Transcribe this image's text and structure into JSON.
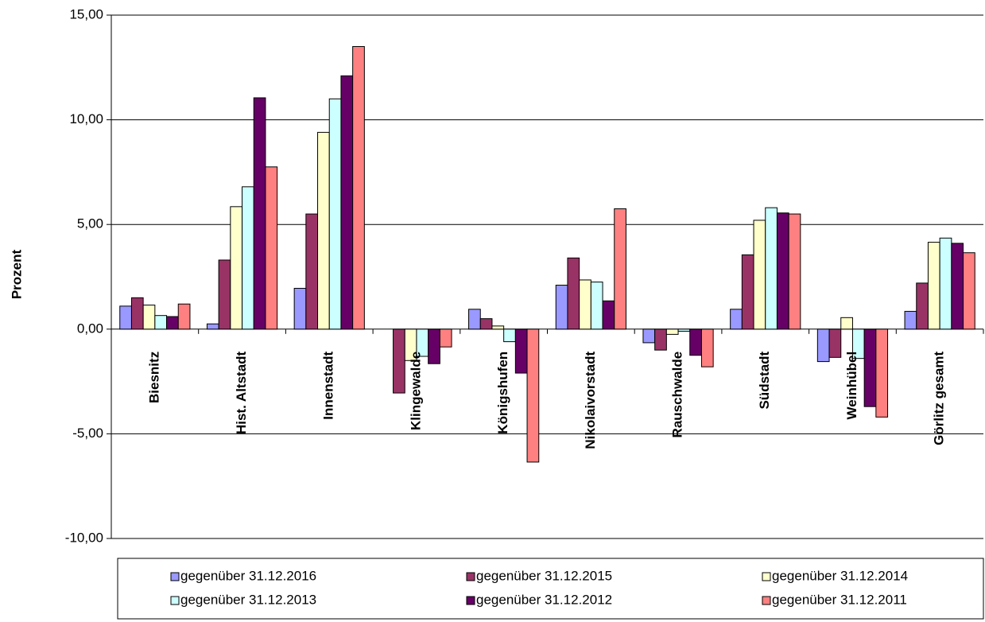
{
  "chart_data": {
    "type": "bar",
    "y_label": "Prozent",
    "categories": [
      "Biesnitz",
      "Hist. Altstadt",
      "Innenstadt",
      "Klingewalde",
      "Königshufen",
      "Nikolaivorstadt",
      "Rauschwalde",
      "Südstadt",
      "Weinhübel",
      "Görlitz gesamt"
    ],
    "series": [
      {
        "name": "gegenüber 31.12.2016",
        "color": "#9999ff",
        "values": [
          1.1,
          0.25,
          1.95,
          0,
          0.95,
          2.1,
          -0.65,
          0.95,
          -1.55,
          0.85
        ]
      },
      {
        "name": "gegenüber 31.12.2015",
        "color": "#993366",
        "values": [
          1.5,
          3.3,
          5.5,
          -3.05,
          0.5,
          3.4,
          -1.0,
          3.55,
          -1.35,
          2.2
        ]
      },
      {
        "name": "gegenüber 31.12.2014",
        "color": "#ffffcc",
        "values": [
          1.15,
          5.85,
          9.4,
          -1.5,
          0.15,
          2.35,
          -0.25,
          5.2,
          0.55,
          4.15
        ]
      },
      {
        "name": "gegenüber 31.12.2013",
        "color": "#ccffff",
        "values": [
          0.65,
          6.8,
          11.0,
          -1.3,
          -0.6,
          2.25,
          -0.1,
          5.8,
          -1.4,
          4.35
        ]
      },
      {
        "name": "gegenüber 31.12.2012",
        "color": "#660066",
        "values": [
          0.6,
          11.05,
          12.1,
          -1.65,
          -2.1,
          1.35,
          -1.25,
          5.55,
          -3.7,
          4.1
        ]
      },
      {
        "name": "gegenüber 31.12.2011",
        "color": "#ff8080",
        "values": [
          1.2,
          7.75,
          13.5,
          -0.85,
          -6.35,
          5.75,
          -1.8,
          5.5,
          -4.2,
          3.65
        ]
      }
    ],
    "ylim": [
      -10,
      15
    ],
    "yticks": [
      {
        "value": -10,
        "label": "-10,00"
      },
      {
        "value": -5,
        "label": "-5,00"
      },
      {
        "value": 0,
        "label": "0,00"
      },
      {
        "value": 5,
        "label": "5,00"
      },
      {
        "value": 10,
        "label": "10,00"
      },
      {
        "value": 15,
        "label": "15,00"
      }
    ],
    "grid": true,
    "legend": "bottom"
  }
}
